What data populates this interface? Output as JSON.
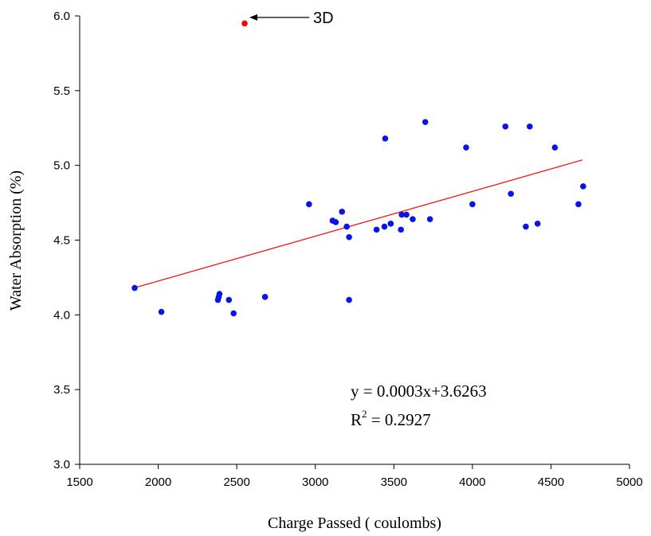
{
  "chart_data": {
    "type": "scatter",
    "xlabel": "Charge Passed ( coulombs)",
    "ylabel": "Water Absorption (%)",
    "xlim": [
      1500,
      5000
    ],
    "ylim": [
      3.0,
      6.0
    ],
    "x_ticks": [
      "1500",
      "2000",
      "2500",
      "3000",
      "3500",
      "4000",
      "4500",
      "5000"
    ],
    "y_ticks": [
      "3.0",
      "3.5",
      "4.0",
      "4.5",
      "5.0",
      "5.5",
      "6.0"
    ],
    "grid": false,
    "legend": "none",
    "colors": {
      "points": "#0a14e6",
      "outlier": "#ff0000",
      "trendline": "#ff0000",
      "axis": "#000000"
    },
    "series": [
      {
        "points": [
          {
            "x": 1850,
            "y": 4.18
          },
          {
            "x": 2020,
            "y": 4.02
          },
          {
            "x": 2380,
            "y": 4.1
          },
          {
            "x": 2385,
            "y": 4.12
          },
          {
            "x": 2390,
            "y": 4.14
          },
          {
            "x": 2450,
            "y": 4.1
          },
          {
            "x": 2480,
            "y": 4.01
          },
          {
            "x": 2680,
            "y": 4.12
          },
          {
            "x": 2960,
            "y": 4.74
          },
          {
            "x": 3110,
            "y": 4.63
          },
          {
            "x": 3130,
            "y": 4.62
          },
          {
            "x": 3170,
            "y": 4.69
          },
          {
            "x": 3200,
            "y": 4.59
          },
          {
            "x": 3215,
            "y": 4.52
          },
          {
            "x": 3215,
            "y": 4.1
          },
          {
            "x": 3390,
            "y": 4.57
          },
          {
            "x": 3440,
            "y": 4.59
          },
          {
            "x": 3445,
            "y": 5.18
          },
          {
            "x": 3480,
            "y": 4.61
          },
          {
            "x": 3545,
            "y": 4.57
          },
          {
            "x": 3550,
            "y": 4.67
          },
          {
            "x": 3580,
            "y": 4.67
          },
          {
            "x": 3620,
            "y": 4.64
          },
          {
            "x": 3700,
            "y": 5.29
          },
          {
            "x": 3730,
            "y": 4.64
          },
          {
            "x": 3960,
            "y": 5.12
          },
          {
            "x": 4000,
            "y": 4.74
          },
          {
            "x": 4210,
            "y": 5.26
          },
          {
            "x": 4245,
            "y": 4.81
          },
          {
            "x": 4340,
            "y": 4.59
          },
          {
            "x": 4365,
            "y": 5.26
          },
          {
            "x": 4415,
            "y": 4.61
          },
          {
            "x": 4525,
            "y": 5.12
          },
          {
            "x": 4675,
            "y": 4.74
          },
          {
            "x": 4705,
            "y": 4.86
          }
        ]
      }
    ],
    "outlier": {
      "x": 2550,
      "y": 5.95,
      "label": "3D"
    },
    "trendline": {
      "slope": 0.0003,
      "intercept": 3.6263,
      "x_range": [
        1850,
        4700
      ]
    },
    "equation_text": "y = 0.0003x+3.6263",
    "r2_prefix": "R",
    "r2_sup": "2",
    "r2_suffix": " = 0.2927"
  }
}
